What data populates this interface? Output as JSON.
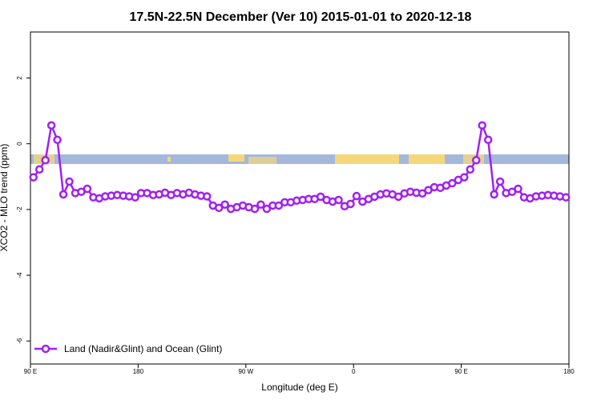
{
  "chart_data": {
    "type": "line",
    "title": "17.5N-22.5N December (Ver 10)   2015-01-01 to 2020-12-18",
    "x_label": "Longitude (deg E)",
    "y_label": "XCO2 - MLO trend (ppm)",
    "x": [
      92.5,
      97.5,
      102.5,
      107.5,
      112.5,
      117.5,
      122.5,
      127.5,
      132.5,
      137.5,
      142.5,
      147.5,
      152.5,
      157.5,
      162.5,
      167.5,
      172.5,
      177.5,
      182.5,
      187.5,
      192.5,
      197.5,
      202.5,
      207.5,
      212.5,
      217.5,
      222.5,
      227.5,
      232.5,
      237.5,
      242.5,
      247.5,
      252.5,
      257.5,
      262.5,
      267.5,
      272.5,
      277.5,
      282.5,
      287.5,
      292.5,
      297.5,
      302.5,
      307.5,
      312.5,
      317.5,
      322.5,
      327.5,
      332.5,
      337.5,
      342.5,
      347.5,
      352.5,
      357.5,
      362.5,
      367.5,
      372.5,
      377.5,
      382.5,
      387.5,
      392.5,
      397.5,
      402.5,
      407.5,
      412.5,
      417.5,
      422.5,
      427.5,
      432.5,
      437.5,
      442.5,
      447.5,
      452.5,
      457.5,
      462.5,
      467.5,
      472.5,
      477.5,
      482.5,
      487.5,
      492.5,
      497.5,
      502.5,
      507.5,
      512.5,
      517.5,
      522.5,
      527.5,
      532.5,
      537.5
    ],
    "series": [
      {
        "name": "Land (Nadir&Glint) and Ocean (Glint)",
        "color": "#a020f0",
        "values": [
          -1.02,
          -0.78,
          -0.5,
          0.56,
          0.12,
          -1.54,
          -1.15,
          -1.5,
          -1.46,
          -1.37,
          -1.63,
          -1.66,
          -1.6,
          -1.58,
          -1.56,
          -1.58,
          -1.6,
          -1.63,
          -1.5,
          -1.5,
          -1.56,
          -1.54,
          -1.49,
          -1.56,
          -1.5,
          -1.54,
          -1.49,
          -1.54,
          -1.58,
          -1.6,
          -1.88,
          -1.95,
          -1.85,
          -1.98,
          -1.93,
          -1.88,
          -1.93,
          -1.98,
          -1.85,
          -1.98,
          -1.88,
          -1.88,
          -1.78,
          -1.78,
          -1.73,
          -1.71,
          -1.68,
          -1.68,
          -1.61,
          -1.71,
          -1.76,
          -1.71,
          -1.9,
          -1.83,
          -1.59,
          -1.76,
          -1.68,
          -1.61,
          -1.54,
          -1.51,
          -1.54,
          -1.61,
          -1.51,
          -1.46,
          -1.49,
          -1.51,
          -1.41,
          -1.32,
          -1.34,
          -1.27,
          -1.2,
          -1.1,
          -1.02,
          -0.78,
          -0.5,
          0.56,
          0.12,
          -1.54,
          -1.15,
          -1.5,
          -1.46,
          -1.37,
          -1.63,
          -1.66,
          -1.6,
          -1.58,
          -1.56,
          -1.58,
          -1.6,
          -1.63
        ]
      }
    ],
    "xlim": [
      90,
      540
    ],
    "xticks": [
      {
        "value": 90,
        "label": "90 E"
      },
      {
        "value": 180,
        "label": "180"
      },
      {
        "value": 270,
        "label": "90 W"
      },
      {
        "value": 360,
        "label": "0"
      },
      {
        "value": 450,
        "label": "90 E"
      },
      {
        "value": 540,
        "label": "180"
      }
    ],
    "ylim": [
      -6.7,
      3.4
    ],
    "yticks": [
      -6,
      -4,
      -2,
      0,
      2
    ],
    "legend": "bottom-left"
  }
}
